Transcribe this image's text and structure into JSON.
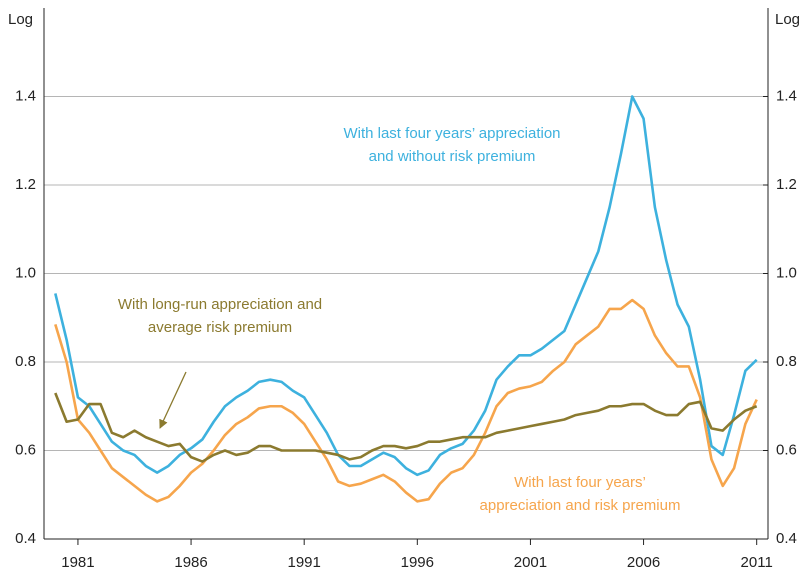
{
  "chart_data": {
    "type": "line",
    "y_label": "Log",
    "y2_label": "Log",
    "x": [
      1980,
      1980.5,
      1981,
      1981.5,
      1982,
      1982.5,
      1983,
      1983.5,
      1984,
      1984.5,
      1985,
      1985.5,
      1986,
      1986.5,
      1987,
      1987.5,
      1988,
      1988.5,
      1989,
      1989.5,
      1990,
      1990.5,
      1991,
      1991.5,
      1992,
      1992.5,
      1993,
      1993.5,
      1994,
      1994.5,
      1995,
      1995.5,
      1996,
      1996.5,
      1997,
      1997.5,
      1998,
      1998.5,
      1999,
      1999.5,
      2000,
      2000.5,
      2001,
      2001.5,
      2002,
      2002.5,
      2003,
      2003.5,
      2004,
      2004.5,
      2005,
      2005.5,
      2006,
      2006.5,
      2007,
      2007.5,
      2008,
      2008.5,
      2009,
      2009.5,
      2010,
      2010.5,
      2011
    ],
    "series": [
      {
        "label": [
          "With last four years’ appreciation",
          "and without risk premium"
        ],
        "color": "#3db1de",
        "values": [
          0.955,
          0.85,
          0.72,
          0.7,
          0.66,
          0.62,
          0.6,
          0.59,
          0.565,
          0.55,
          0.565,
          0.59,
          0.605,
          0.625,
          0.665,
          0.7,
          0.72,
          0.735,
          0.755,
          0.76,
          0.755,
          0.735,
          0.72,
          0.68,
          0.64,
          0.59,
          0.565,
          0.565,
          0.58,
          0.595,
          0.585,
          0.56,
          0.545,
          0.555,
          0.59,
          0.605,
          0.615,
          0.645,
          0.69,
          0.76,
          0.79,
          0.815,
          0.815,
          0.83,
          0.85,
          0.87,
          0.93,
          0.99,
          1.05,
          1.15,
          1.27,
          1.4,
          1.35,
          1.15,
          1.03,
          0.93,
          0.88,
          0.76,
          0.61,
          0.59,
          0.68,
          0.78,
          0.805
        ]
      },
      {
        "label": [
          "With last four years’",
          "appreciation and risk premium"
        ],
        "color": "#f6a54c",
        "values": [
          0.885,
          0.8,
          0.67,
          0.64,
          0.6,
          0.56,
          0.54,
          0.52,
          0.5,
          0.485,
          0.495,
          0.52,
          0.55,
          0.57,
          0.6,
          0.635,
          0.66,
          0.675,
          0.695,
          0.7,
          0.7,
          0.685,
          0.66,
          0.62,
          0.58,
          0.53,
          0.52,
          0.525,
          0.535,
          0.545,
          0.53,
          0.505,
          0.485,
          0.49,
          0.525,
          0.55,
          0.56,
          0.59,
          0.64,
          0.7,
          0.73,
          0.74,
          0.745,
          0.755,
          0.78,
          0.8,
          0.84,
          0.86,
          0.88,
          0.92,
          0.92,
          0.94,
          0.92,
          0.86,
          0.82,
          0.79,
          0.79,
          0.72,
          0.58,
          0.52,
          0.56,
          0.66,
          0.715
        ]
      },
      {
        "label": [
          "With long-run appreciation and",
          "average risk premium"
        ],
        "color": "#8b7a2f",
        "values": [
          0.73,
          0.665,
          0.67,
          0.705,
          0.705,
          0.64,
          0.63,
          0.645,
          0.63,
          0.62,
          0.61,
          0.615,
          0.585,
          0.575,
          0.59,
          0.6,
          0.59,
          0.595,
          0.61,
          0.61,
          0.6,
          0.6,
          0.6,
          0.6,
          0.595,
          0.59,
          0.58,
          0.585,
          0.6,
          0.61,
          0.61,
          0.605,
          0.61,
          0.62,
          0.62,
          0.625,
          0.63,
          0.63,
          0.63,
          0.64,
          0.645,
          0.65,
          0.655,
          0.66,
          0.665,
          0.67,
          0.68,
          0.685,
          0.69,
          0.7,
          0.7,
          0.705,
          0.705,
          0.69,
          0.68,
          0.68,
          0.705,
          0.71,
          0.65,
          0.645,
          0.67,
          0.69,
          0.7
        ]
      }
    ],
    "xlim": [
      1979.5,
      2011.5
    ],
    "xticks": [
      1981,
      1986,
      1991,
      1996,
      2001,
      2006,
      2011
    ],
    "ylim": [
      0.4,
      1.6
    ],
    "yticks": [
      0.4,
      0.6,
      0.8,
      {
        "value": 1,
        "label": "1.0"
      },
      1.2,
      1.4
    ],
    "y2lim": [
      0.4,
      1.6
    ],
    "y2ticks": [
      0.4,
      0.6,
      0.8,
      {
        "value": 1,
        "label": "1.0"
      },
      1.2,
      1.4
    ],
    "grid": true
  }
}
